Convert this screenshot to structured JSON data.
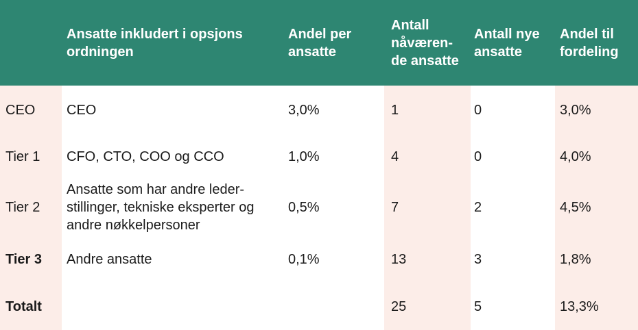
{
  "colors": {
    "header_bg": "#2E8672",
    "stripe_bg": "#FCEDE8",
    "body_bg": "#FFFFFF",
    "header_text": "#FFFFFF",
    "body_text": "#1A1A1A"
  },
  "table": {
    "header": {
      "rowlabel": "",
      "description": "Ansatte inkludert i opsjons\nordningen",
      "andel_per_ansatte": "Andel per\nansatte",
      "antall_navaerende_ansatte": "Antall\nnåværen-\nde ansatte",
      "antall_nye_ansatte": "Antall nye\nansatte",
      "andel_til_fordeling": "Andel til\nfordeling"
    },
    "rows": [
      {
        "label": "CEO",
        "description": "CEO",
        "andel_per_ansatte": "3,0%",
        "antall_navaerende_ansatte": "1",
        "antall_nye_ansatte": "0",
        "andel_til_fordeling": "3,0%"
      },
      {
        "label": "Tier 1",
        "description": "CFO, CTO, COO og CCO",
        "andel_per_ansatte": "1,0%",
        "antall_navaerende_ansatte": "4",
        "antall_nye_ansatte": "0",
        "andel_til_fordeling": "4,0%"
      },
      {
        "label": "Tier 2",
        "description": "Ansatte som har andre leder-\nstillinger,  tekniske eksperter og\nandre nøkkelpersoner",
        "andel_per_ansatte": "0,5%",
        "antall_navaerende_ansatte": "7",
        "antall_nye_ansatte": "2",
        "andel_til_fordeling": "4,5%"
      },
      {
        "label": "Tier 3",
        "description": "Andre ansatte",
        "andel_per_ansatte": "0,1%",
        "antall_navaerende_ansatte": "13",
        "antall_nye_ansatte": "3",
        "andel_til_fordeling": "1,8%"
      },
      {
        "label": "Totalt",
        "description": "",
        "andel_per_ansatte": "",
        "antall_navaerende_ansatte": "25",
        "antall_nye_ansatte": "5",
        "andel_til_fordeling": "13,3%"
      }
    ]
  }
}
